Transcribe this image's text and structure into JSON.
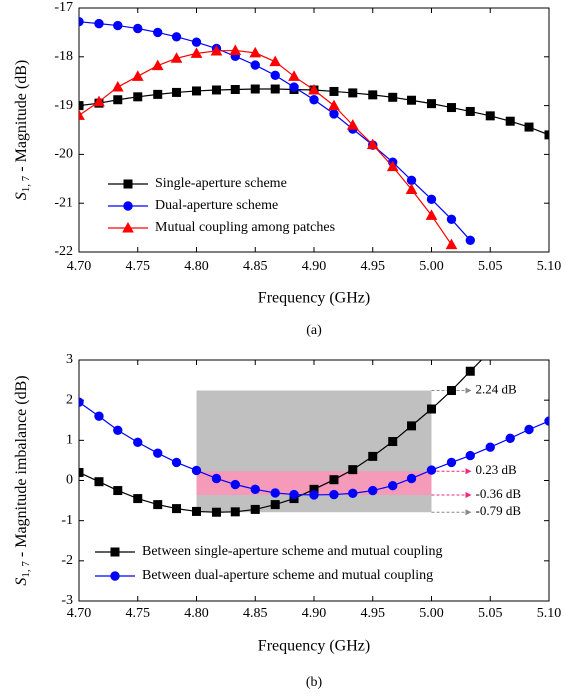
{
  "chart_data": [
    {
      "type": "line",
      "xlabel": "Frequency (GHz)",
      "ylabel": {
        "symbol": "S",
        "subscript": "1, 7",
        "text": " - Magnitude (dB)"
      },
      "panel_label": "(a)",
      "xlim": [
        4.7,
        5.1
      ],
      "ylim": [
        -22,
        -17
      ],
      "xticks": [
        {
          "value": 4.7,
          "label": "4.70"
        },
        {
          "value": 4.75,
          "label": "4.75"
        },
        {
          "value": 4.8,
          "label": "4.80"
        },
        {
          "value": 4.85,
          "label": "4.85"
        },
        {
          "value": 4.9,
          "label": "4.90"
        },
        {
          "value": 4.95,
          "label": "4.95"
        },
        {
          "value": 5.0,
          "label": "5.00"
        },
        {
          "value": 5.05,
          "label": "5.05"
        },
        {
          "value": 5.1,
          "label": "5.10"
        }
      ],
      "yticks": [
        -22,
        -21,
        -20,
        -19,
        -18,
        -17
      ],
      "x": [
        4.7,
        4.717,
        4.733,
        4.75,
        4.767,
        4.783,
        4.8,
        4.817,
        4.833,
        4.85,
        4.867,
        4.883,
        4.9,
        4.917,
        4.933,
        4.95,
        4.967,
        4.983,
        5.0,
        5.017,
        5.033,
        5.05,
        5.067,
        5.083,
        5.1
      ],
      "legend": "lower left",
      "series": [
        {
          "name": "Single-aperture scheme",
          "color": "#000000",
          "marker": "square",
          "values": [
            -19.0,
            -18.95,
            -18.88,
            -18.82,
            -18.77,
            -18.73,
            -18.7,
            -18.68,
            -18.67,
            -18.66,
            -18.66,
            -18.67,
            -18.68,
            -18.71,
            -18.74,
            -18.78,
            -18.83,
            -18.89,
            -18.96,
            -19.04,
            -19.12,
            -19.21,
            -19.32,
            -19.44,
            -19.6
          ]
        },
        {
          "name": "Dual-aperture scheme",
          "color": "#0000ff",
          "marker": "circle",
          "values": [
            -17.28,
            -17.32,
            -17.36,
            -17.42,
            -17.5,
            -17.59,
            -17.7,
            -17.83,
            -17.99,
            -18.17,
            -18.38,
            -18.62,
            -18.88,
            -19.17,
            -19.48,
            -19.81,
            -20.16,
            -20.53,
            -20.92,
            -21.33,
            -21.76,
            null,
            null,
            null,
            null
          ]
        },
        {
          "name": "Mutual coupling among patches",
          "color": "#ff0000",
          "marker": "triangle",
          "values": [
            -19.2,
            -18.92,
            -18.62,
            -18.4,
            -18.18,
            -18.03,
            -17.93,
            -17.88,
            -17.87,
            -17.92,
            -18.1,
            -18.4,
            -18.68,
            -19.0,
            -19.4,
            -19.8,
            -20.25,
            -20.72,
            -21.25,
            -21.85,
            null,
            null,
            null,
            null,
            null
          ]
        }
      ]
    },
    {
      "type": "line",
      "xlabel": "Frequency (GHz)",
      "ylabel": {
        "symbol": "S",
        "subscript": "1, 7",
        "text": " - Magnitude imbalance (dB)"
      },
      "panel_label": "(b)",
      "xlim": [
        4.7,
        5.1
      ],
      "ylim": [
        -3,
        3
      ],
      "xticks": [
        {
          "value": 4.7,
          "label": "4.70"
        },
        {
          "value": 4.75,
          "label": "4.75"
        },
        {
          "value": 4.8,
          "label": "4.80"
        },
        {
          "value": 4.85,
          "label": "4.85"
        },
        {
          "value": 4.9,
          "label": "4.90"
        },
        {
          "value": 4.95,
          "label": "4.95"
        },
        {
          "value": 5.0,
          "label": "5.00"
        },
        {
          "value": 5.05,
          "label": "5.05"
        },
        {
          "value": 5.1,
          "label": "5.10"
        }
      ],
      "yticks": [
        -3,
        -2,
        -1,
        0,
        1,
        2,
        3
      ],
      "x": [
        4.7,
        4.717,
        4.733,
        4.75,
        4.767,
        4.783,
        4.8,
        4.817,
        4.833,
        4.85,
        4.867,
        4.883,
        4.9,
        4.917,
        4.933,
        4.95,
        4.967,
        4.983,
        5.0,
        5.017,
        5.033,
        5.05,
        5.067,
        5.083,
        5.1
      ],
      "legend": "lower left",
      "bands": [
        {
          "x": [
            4.8,
            5.0
          ],
          "y": [
            -0.79,
            2.24
          ],
          "color": "#c0c0c0"
        },
        {
          "x": [
            4.8,
            5.0
          ],
          "y": [
            -0.36,
            0.23
          ],
          "color": "#f59ab8"
        }
      ],
      "annotations": [
        {
          "value": 2.24,
          "label": "2.24 dB",
          "color": "#888888"
        },
        {
          "value": 0.23,
          "label": "0.23 dB",
          "color": "#ee2a7b"
        },
        {
          "value": -0.36,
          "label": "-0.36 dB",
          "color": "#ee2a7b"
        },
        {
          "value": -0.79,
          "label": "-0.79 dB",
          "color": "#888888"
        }
      ],
      "series": [
        {
          "name": "Between single-aperture scheme and mutual coupling",
          "color": "#000000",
          "marker": "square",
          "values": [
            0.2,
            -0.03,
            -0.25,
            -0.45,
            -0.6,
            -0.7,
            -0.77,
            -0.79,
            -0.78,
            -0.72,
            -0.6,
            -0.45,
            -0.22,
            0.02,
            0.27,
            0.6,
            0.97,
            1.36,
            1.78,
            2.24,
            2.72,
            3.22,
            null,
            null,
            null
          ]
        },
        {
          "name": "Between dual-aperture scheme and mutual coupling",
          "color": "#0000ff",
          "marker": "circle",
          "values": [
            1.95,
            1.6,
            1.25,
            0.95,
            0.68,
            0.45,
            0.25,
            0.05,
            -0.1,
            -0.22,
            -0.31,
            -0.35,
            -0.36,
            -0.35,
            -0.32,
            -0.25,
            -0.13,
            0.05,
            0.26,
            0.45,
            0.62,
            0.83,
            1.05,
            1.27,
            1.48
          ]
        }
      ]
    }
  ]
}
